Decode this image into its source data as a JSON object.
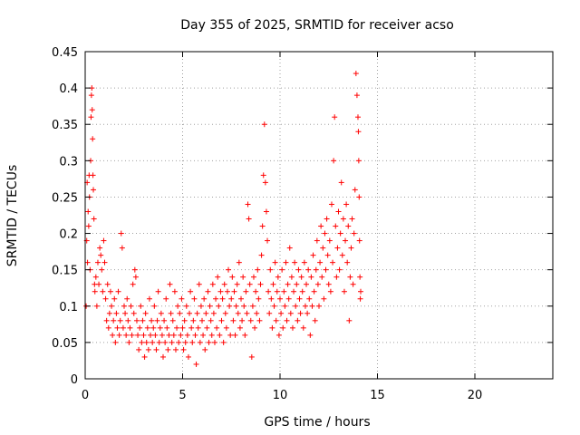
{
  "chart_data": {
    "type": "scatter",
    "title": "Day 355 of 2025, SRMTID for receiver acso",
    "xlabel": "GPS time / hours",
    "ylabel": "SRMTID / TECUs",
    "xlim": [
      0,
      24
    ],
    "ylim": [
      0,
      0.45
    ],
    "xticks": [
      0,
      5,
      10,
      15,
      20
    ],
    "xtick_labels": [
      "0",
      "5",
      "10",
      "15",
      "20"
    ],
    "yticks": [
      0,
      0.05,
      0.1,
      0.15,
      0.2,
      0.25,
      0.3,
      0.35,
      0.4,
      0.45
    ],
    "ytick_labels": [
      "0",
      "0.05",
      "0.1",
      "0.15",
      "0.2",
      "0.25",
      "0.3",
      "0.35",
      "0.4",
      "0.45"
    ],
    "grid": true,
    "marker": "+",
    "color": "#ff0000",
    "series": [
      {
        "name": "SRMTID",
        "points": [
          [
            0.05,
            0.1
          ],
          [
            0.08,
            0.19
          ],
          [
            0.1,
            0.27
          ],
          [
            0.12,
            0.16
          ],
          [
            0.15,
            0.23
          ],
          [
            0.18,
            0.21
          ],
          [
            0.2,
            0.28
          ],
          [
            0.22,
            0.25
          ],
          [
            0.25,
            0.15
          ],
          [
            0.28,
            0.3
          ],
          [
            0.3,
            0.36
          ],
          [
            0.32,
            0.39
          ],
          [
            0.34,
            0.4
          ],
          [
            0.36,
            0.37
          ],
          [
            0.38,
            0.33
          ],
          [
            0.4,
            0.28
          ],
          [
            0.42,
            0.26
          ],
          [
            0.45,
            0.22
          ],
          [
            0.48,
            0.13
          ],
          [
            0.5,
            0.12
          ],
          [
            0.55,
            0.14
          ],
          [
            0.6,
            0.1
          ],
          [
            0.65,
            0.16
          ],
          [
            0.7,
            0.13
          ],
          [
            0.75,
            0.18
          ],
          [
            0.8,
            0.17
          ],
          [
            0.85,
            0.15
          ],
          [
            0.9,
            0.12
          ],
          [
            0.95,
            0.19
          ],
          [
            1.0,
            0.16
          ],
          [
            1.05,
            0.11
          ],
          [
            1.1,
            0.08
          ],
          [
            1.15,
            0.13
          ],
          [
            1.2,
            0.07
          ],
          [
            1.25,
            0.09
          ],
          [
            1.3,
            0.12
          ],
          [
            1.35,
            0.1
          ],
          [
            1.4,
            0.06
          ],
          [
            1.45,
            0.08
          ],
          [
            1.5,
            0.11
          ],
          [
            1.55,
            0.05
          ],
          [
            1.6,
            0.09
          ],
          [
            1.65,
            0.07
          ],
          [
            1.7,
            0.12
          ],
          [
            1.75,
            0.06
          ],
          [
            1.8,
            0.08
          ],
          [
            1.85,
            0.2
          ],
          [
            1.9,
            0.18
          ],
          [
            1.95,
            0.07
          ],
          [
            2.0,
            0.1
          ],
          [
            2.05,
            0.09
          ],
          [
            2.1,
            0.06
          ],
          [
            2.15,
            0.11
          ],
          [
            2.2,
            0.08
          ],
          [
            2.25,
            0.05
          ],
          [
            2.3,
            0.07
          ],
          [
            2.35,
            0.1
          ],
          [
            2.4,
            0.06
          ],
          [
            2.45,
            0.13
          ],
          [
            2.5,
            0.09
          ],
          [
            2.55,
            0.15
          ],
          [
            2.6,
            0.14
          ],
          [
            2.65,
            0.08
          ],
          [
            2.7,
            0.06
          ],
          [
            2.75,
            0.04
          ],
          [
            2.8,
            0.07
          ],
          [
            2.85,
            0.1
          ],
          [
            2.9,
            0.05
          ],
          [
            2.95,
            0.08
          ],
          [
            3.0,
            0.06
          ],
          [
            3.05,
            0.03
          ],
          [
            3.1,
            0.09
          ],
          [
            3.15,
            0.05
          ],
          [
            3.2,
            0.07
          ],
          [
            3.25,
            0.04
          ],
          [
            3.3,
            0.11
          ],
          [
            3.35,
            0.06
          ],
          [
            3.4,
            0.08
          ],
          [
            3.45,
            0.05
          ],
          [
            3.5,
            0.07
          ],
          [
            3.55,
            0.1
          ],
          [
            3.6,
            0.06
          ],
          [
            3.65,
            0.04
          ],
          [
            3.7,
            0.08
          ],
          [
            3.75,
            0.12
          ],
          [
            3.8,
            0.05
          ],
          [
            3.85,
            0.07
          ],
          [
            3.9,
            0.09
          ],
          [
            3.95,
            0.06
          ],
          [
            4.0,
            0.03
          ],
          [
            4.05,
            0.08
          ],
          [
            4.1,
            0.05
          ],
          [
            4.15,
            0.11
          ],
          [
            4.2,
            0.07
          ],
          [
            4.25,
            0.04
          ],
          [
            4.3,
            0.06
          ],
          [
            4.35,
            0.13
          ],
          [
            4.4,
            0.09
          ],
          [
            4.45,
            0.05
          ],
          [
            4.5,
            0.08
          ],
          [
            4.55,
            0.06
          ],
          [
            4.6,
            0.12
          ],
          [
            4.65,
            0.04
          ],
          [
            4.7,
            0.07
          ],
          [
            4.75,
            0.1
          ],
          [
            4.8,
            0.05
          ],
          [
            4.85,
            0.09
          ],
          [
            4.9,
            0.06
          ],
          [
            4.95,
            0.11
          ],
          [
            5.0,
            0.07
          ],
          [
            5.05,
            0.04
          ],
          [
            5.1,
            0.08
          ],
          [
            5.15,
            0.05
          ],
          [
            5.2,
            0.1
          ],
          [
            5.25,
            0.06
          ],
          [
            5.3,
            0.03
          ],
          [
            5.35,
            0.09
          ],
          [
            5.4,
            0.12
          ],
          [
            5.45,
            0.07
          ],
          [
            5.5,
            0.05
          ],
          [
            5.55,
            0.08
          ],
          [
            5.6,
            0.11
          ],
          [
            5.65,
            0.06
          ],
          [
            5.7,
            0.02
          ],
          [
            5.75,
            0.09
          ],
          [
            5.8,
            0.07
          ],
          [
            5.85,
            0.13
          ],
          [
            5.9,
            0.05
          ],
          [
            5.95,
            0.1
          ],
          [
            6.0,
            0.08
          ],
          [
            6.05,
            0.06
          ],
          [
            6.1,
            0.11
          ],
          [
            6.15,
            0.04
          ],
          [
            6.2,
            0.09
          ],
          [
            6.25,
            0.07
          ],
          [
            6.3,
            0.12
          ],
          [
            6.35,
            0.05
          ],
          [
            6.4,
            0.1
          ],
          [
            6.45,
            0.08
          ],
          [
            6.5,
            0.06
          ],
          [
            6.55,
            0.13
          ],
          [
            6.6,
            0.09
          ],
          [
            6.65,
            0.05
          ],
          [
            6.7,
            0.11
          ],
          [
            6.75,
            0.07
          ],
          [
            6.8,
            0.14
          ],
          [
            6.85,
            0.1
          ],
          [
            6.9,
            0.06
          ],
          [
            6.95,
            0.12
          ],
          [
            7.0,
            0.08
          ],
          [
            7.05,
            0.11
          ],
          [
            7.1,
            0.05
          ],
          [
            7.15,
            0.13
          ],
          [
            7.2,
            0.09
          ],
          [
            7.25,
            0.07
          ],
          [
            7.3,
            0.12
          ],
          [
            7.35,
            0.15
          ],
          [
            7.4,
            0.1
          ],
          [
            7.45,
            0.06
          ],
          [
            7.5,
            0.11
          ],
          [
            7.55,
            0.14
          ],
          [
            7.6,
            0.08
          ],
          [
            7.65,
            0.12
          ],
          [
            7.7,
            0.06
          ],
          [
            7.75,
            0.1
          ],
          [
            7.8,
            0.13
          ],
          [
            7.85,
            0.09
          ],
          [
            7.9,
            0.16
          ],
          [
            7.95,
            0.07
          ],
          [
            8.0,
            0.11
          ],
          [
            8.05,
            0.08
          ],
          [
            8.1,
            0.14
          ],
          [
            8.15,
            0.1
          ],
          [
            8.2,
            0.06
          ],
          [
            8.25,
            0.12
          ],
          [
            8.3,
            0.09
          ],
          [
            8.35,
            0.24
          ],
          [
            8.4,
            0.22
          ],
          [
            8.45,
            0.13
          ],
          [
            8.5,
            0.08
          ],
          [
            8.55,
            0.03
          ],
          [
            8.6,
            0.1
          ],
          [
            8.65,
            0.14
          ],
          [
            8.7,
            0.07
          ],
          [
            8.75,
            0.12
          ],
          [
            8.8,
            0.09
          ],
          [
            8.85,
            0.15
          ],
          [
            8.9,
            0.11
          ],
          [
            8.95,
            0.08
          ],
          [
            9.0,
            0.13
          ],
          [
            9.05,
            0.17
          ],
          [
            9.1,
            0.21
          ],
          [
            9.15,
            0.28
          ],
          [
            9.2,
            0.35
          ],
          [
            9.25,
            0.27
          ],
          [
            9.3,
            0.23
          ],
          [
            9.35,
            0.19
          ],
          [
            9.4,
            0.12
          ],
          [
            9.45,
            0.09
          ],
          [
            9.5,
            0.15
          ],
          [
            9.55,
            0.11
          ],
          [
            9.6,
            0.07
          ],
          [
            9.65,
            0.13
          ],
          [
            9.7,
            0.1
          ],
          [
            9.75,
            0.16
          ],
          [
            9.8,
            0.08
          ],
          [
            9.85,
            0.12
          ],
          [
            9.9,
            0.14
          ],
          [
            9.95,
            0.06
          ],
          [
            10.0,
            0.11
          ],
          [
            10.05,
            0.09
          ],
          [
            10.1,
            0.15
          ],
          [
            10.15,
            0.07
          ],
          [
            10.2,
            0.12
          ],
          [
            10.25,
            0.1
          ],
          [
            10.3,
            0.16
          ],
          [
            10.35,
            0.08
          ],
          [
            10.4,
            0.13
          ],
          [
            10.45,
            0.11
          ],
          [
            10.5,
            0.18
          ],
          [
            10.55,
            0.09
          ],
          [
            10.6,
            0.14
          ],
          [
            10.65,
            0.07
          ],
          [
            10.7,
            0.12
          ],
          [
            10.75,
            0.16
          ],
          [
            10.8,
            0.1
          ],
          [
            10.85,
            0.13
          ],
          [
            10.9,
            0.08
          ],
          [
            10.95,
            0.15
          ],
          [
            11.0,
            0.11
          ],
          [
            11.05,
            0.09
          ],
          [
            11.1,
            0.14
          ],
          [
            11.15,
            0.12
          ],
          [
            11.2,
            0.07
          ],
          [
            11.25,
            0.16
          ],
          [
            11.3,
            0.1
          ],
          [
            11.35,
            0.13
          ],
          [
            11.4,
            0.09
          ],
          [
            11.45,
            0.15
          ],
          [
            11.5,
            0.11
          ],
          [
            11.55,
            0.06
          ],
          [
            11.6,
            0.14
          ],
          [
            11.65,
            0.1
          ],
          [
            11.7,
            0.17
          ],
          [
            11.75,
            0.12
          ],
          [
            11.8,
            0.08
          ],
          [
            11.85,
            0.15
          ],
          [
            11.9,
            0.19
          ],
          [
            11.95,
            0.13
          ],
          [
            12.0,
            0.1
          ],
          [
            12.05,
            0.16
          ],
          [
            12.1,
            0.21
          ],
          [
            12.15,
            0.14
          ],
          [
            12.2,
            0.18
          ],
          [
            12.25,
            0.11
          ],
          [
            12.3,
            0.2
          ],
          [
            12.35,
            0.15
          ],
          [
            12.4,
            0.22
          ],
          [
            12.45,
            0.17
          ],
          [
            12.5,
            0.13
          ],
          [
            12.55,
            0.19
          ],
          [
            12.6,
            0.12
          ],
          [
            12.65,
            0.24
          ],
          [
            12.7,
            0.16
          ],
          [
            12.75,
            0.3
          ],
          [
            12.8,
            0.36
          ],
          [
            12.85,
            0.21
          ],
          [
            12.9,
            0.14
          ],
          [
            12.95,
            0.18
          ],
          [
            13.0,
            0.23
          ],
          [
            13.05,
            0.15
          ],
          [
            13.1,
            0.2
          ],
          [
            13.15,
            0.27
          ],
          [
            13.2,
            0.17
          ],
          [
            13.25,
            0.22
          ],
          [
            13.3,
            0.12
          ],
          [
            13.35,
            0.19
          ],
          [
            13.4,
            0.24
          ],
          [
            13.45,
            0.16
          ],
          [
            13.5,
            0.21
          ],
          [
            13.55,
            0.08
          ],
          [
            13.6,
            0.14
          ],
          [
            13.65,
            0.18
          ],
          [
            13.7,
            0.22
          ],
          [
            13.75,
            0.13
          ],
          [
            13.8,
            0.2
          ],
          [
            13.85,
            0.26
          ],
          [
            13.9,
            0.42
          ],
          [
            13.95,
            0.39
          ],
          [
            14.0,
            0.36
          ],
          [
            14.02,
            0.34
          ],
          [
            14.04,
            0.3
          ],
          [
            14.06,
            0.25
          ],
          [
            14.08,
            0.19
          ],
          [
            14.1,
            0.14
          ],
          [
            14.12,
            0.11
          ],
          [
            14.14,
            0.12
          ]
        ]
      }
    ]
  }
}
